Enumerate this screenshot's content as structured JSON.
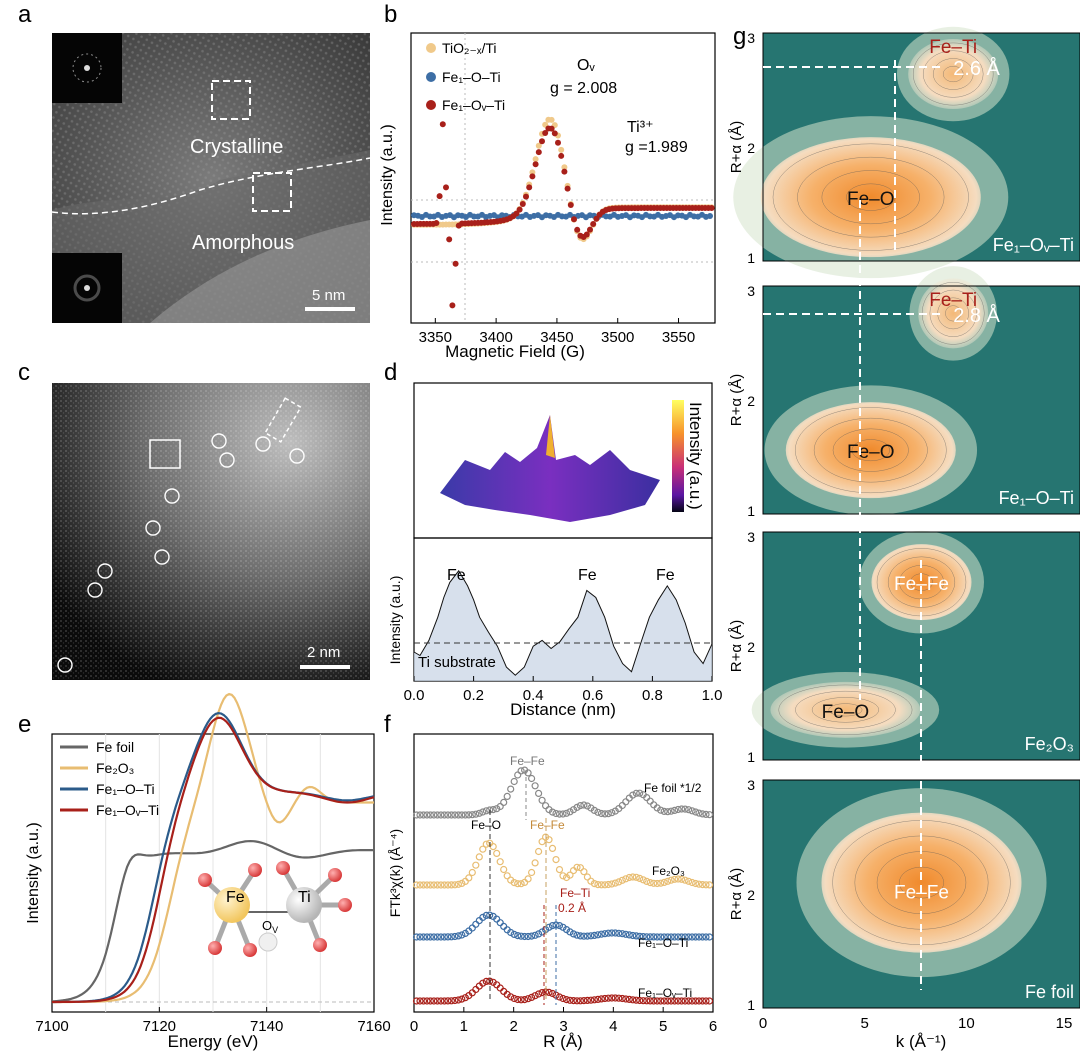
{
  "panel_labels": {
    "a": "a",
    "b": "b",
    "c": "c",
    "d": "d",
    "e": "e",
    "f": "f",
    "g": "g"
  },
  "panel_a": {
    "crystalline": "Crystalline",
    "amorphous": "Amorphous",
    "scalebar": "5 nm"
  },
  "panel_c": {
    "scalebar": "2 nm"
  },
  "panel_d": {
    "colorbar_label": "Intensity (a.u.)",
    "peak_label": "Fe",
    "substrate": "Ti substrate"
  },
  "panel_e": {
    "inset_fe": "Fe",
    "inset_ti": "Ti",
    "inset_ov": "O",
    "inset_ov_sub": "V"
  },
  "panel_f": {
    "ann_fefe_top": "Fe–Fe",
    "ann_feo": "Fe–O",
    "ann_fefe_mid": "Fe–Fe",
    "ann_feti": "Fe–Ti",
    "ann_shift": "0.2 Å",
    "lbl_foil": "Fe foil *1/2",
    "lbl_fe2o3": "Fe₂O₃",
    "lbl_fe1oti": "Fe₁–O–Ti",
    "lbl_fe1ovti": "Fe₁–Oᵥ–Ti"
  },
  "panel_g": {
    "xlabel": "k (Å⁻¹)",
    "ylabel": "R+α (Å)",
    "ticks_x": [
      "0",
      "5",
      "10",
      "15"
    ],
    "ticks_y": [
      "1",
      "2",
      "3"
    ],
    "maps": [
      {
        "name": "Fe₁–Oᵥ–Ti",
        "bond_top": "Fe–Ti",
        "bond_low": "Fe–O",
        "distance": "2.6 Å"
      },
      {
        "name": "Fe₁–O–Ti",
        "bond_top": "Fe–Ti",
        "bond_low": "Fe–O",
        "distance": "2.8 Å"
      },
      {
        "name": "Fe₂O₃",
        "bond_top": "Fe–Fe",
        "bond_low": "Fe–O",
        "distance": ""
      },
      {
        "name": "Fe foil",
        "bond_top": "Fe–Fe",
        "bond_low": "",
        "distance": ""
      }
    ]
  },
  "chart_data": [
    {
      "panel": "b",
      "type": "scatter",
      "xlabel": "Magnetic Field (G)",
      "ylabel": "Intensity (a.u.)",
      "xlim": [
        3330,
        3580
      ],
      "xticks": [
        3350,
        3400,
        3450,
        3500,
        3550
      ],
      "series": [
        {
          "name": "TiO₂₋ₓ/Ti",
          "color": "#f0c98a"
        },
        {
          "name": "Fe₁–O–Ti",
          "color": "#3d6ea5"
        },
        {
          "name": "Fe₁–Oᵥ–Ti",
          "color": "#a8201a"
        }
      ],
      "annotations": [
        {
          "text": "Oᵥ",
          "g": "g = 2.008"
        },
        {
          "text": "Ti³⁺",
          "g": "g =1.989"
        }
      ]
    },
    {
      "panel": "d",
      "type": "line",
      "xlabel": "Distance (nm)",
      "ylabel": "Intensity (a.u.)",
      "xlim": [
        0,
        1.0
      ],
      "xticks": [
        "0.0",
        "0.2",
        "0.4",
        "0.6",
        "0.8",
        "1.0"
      ],
      "x": [
        0,
        0.02,
        0.05,
        0.08,
        0.1,
        0.12,
        0.15,
        0.18,
        0.2,
        0.22,
        0.25,
        0.28,
        0.31,
        0.34,
        0.37,
        0.4,
        0.43,
        0.46,
        0.49,
        0.52,
        0.55,
        0.58,
        0.61,
        0.64,
        0.67,
        0.7,
        0.73,
        0.76,
        0.79,
        0.82,
        0.85,
        0.88,
        0.91,
        0.94,
        0.97,
        1.0
      ],
      "values": [
        0.25,
        0.22,
        0.35,
        0.55,
        0.72,
        0.85,
        0.95,
        0.82,
        0.7,
        0.55,
        0.42,
        0.3,
        0.12,
        0.05,
        0.12,
        0.3,
        0.35,
        0.28,
        0.34,
        0.45,
        0.55,
        0.78,
        0.72,
        0.55,
        0.3,
        0.15,
        0.08,
        0.32,
        0.55,
        0.7,
        0.82,
        0.7,
        0.5,
        0.25,
        0.15,
        0.32
      ],
      "peak_labels": [
        "Fe",
        "Fe",
        "Fe"
      ]
    },
    {
      "panel": "e",
      "type": "line",
      "xlabel": "Energy (eV)",
      "ylabel": "Intensity (a.u.)",
      "xlim": [
        7100,
        7160
      ],
      "xticks": [
        7100,
        7120,
        7140,
        7160
      ],
      "series": [
        {
          "name": "Fe foil",
          "color": "#666666"
        },
        {
          "name": "Fe₂O₃",
          "color": "#e8bd72"
        },
        {
          "name": "Fe₁–O–Ti",
          "color": "#2b5b8a"
        },
        {
          "name": "Fe₁–Oᵥ–Ti",
          "color": "#a8201a"
        }
      ]
    },
    {
      "panel": "f",
      "type": "scatter",
      "xlabel": "R (Å)",
      "ylabel": "FTk³χ(k) (Å⁻⁴)",
      "xlim": [
        0,
        6
      ],
      "xticks": [
        0,
        1,
        2,
        3,
        4,
        5,
        6
      ],
      "series": [
        {
          "name": "Fe foil *1/2",
          "color": "#888888"
        },
        {
          "name": "Fe₂O₃",
          "color": "#e8bd72"
        },
        {
          "name": "Fe₁–O–Ti",
          "color": "#3d6ea5"
        },
        {
          "name": "Fe₁–Oᵥ–Ti",
          "color": "#a8201a"
        }
      ]
    }
  ]
}
